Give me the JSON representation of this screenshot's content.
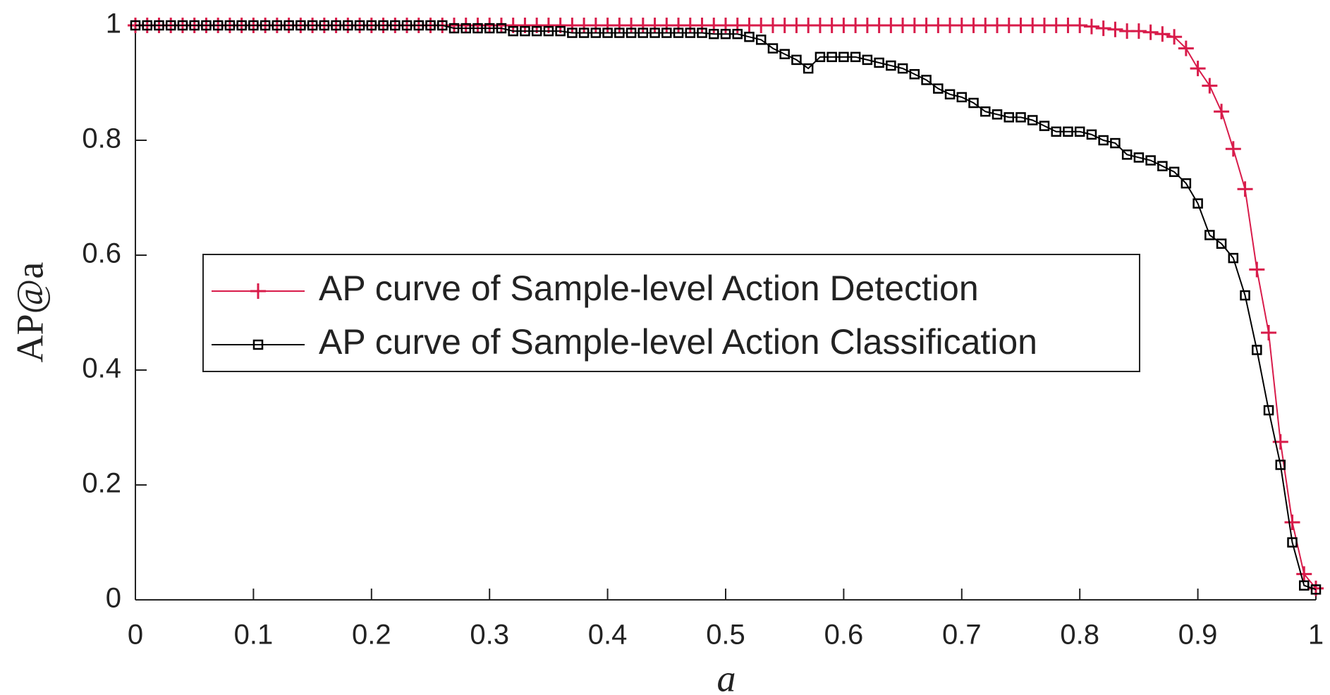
{
  "chart_data": {
    "type": "line",
    "xlabel": "a",
    "ylabel": "AP@a",
    "x": [
      0,
      0.01,
      0.02,
      0.03,
      0.04,
      0.05,
      0.06,
      0.07,
      0.08,
      0.09,
      0.1,
      0.11,
      0.12,
      0.13,
      0.14,
      0.15,
      0.16,
      0.17,
      0.18,
      0.19,
      0.2,
      0.21,
      0.22,
      0.23,
      0.24,
      0.25,
      0.26,
      0.27,
      0.28,
      0.29,
      0.3,
      0.31,
      0.32,
      0.33,
      0.34,
      0.35,
      0.36,
      0.37,
      0.38,
      0.39,
      0.4,
      0.41,
      0.42,
      0.43,
      0.44,
      0.45,
      0.46,
      0.47,
      0.48,
      0.49,
      0.5,
      0.51,
      0.52,
      0.53,
      0.54,
      0.55,
      0.56,
      0.57,
      0.58,
      0.59,
      0.6,
      0.61,
      0.62,
      0.63,
      0.64,
      0.65,
      0.66,
      0.67,
      0.68,
      0.69,
      0.7,
      0.71,
      0.72,
      0.73,
      0.74,
      0.75,
      0.76,
      0.77,
      0.78,
      0.79,
      0.8,
      0.81,
      0.82,
      0.83,
      0.84,
      0.85,
      0.86,
      0.87,
      0.88,
      0.89,
      0.9,
      0.91,
      0.92,
      0.93,
      0.94,
      0.95,
      0.96,
      0.97,
      0.98,
      0.99,
      1
    ],
    "series": [
      {
        "name": "AP curve of Sample-level Action Detection",
        "color": "#d81b4a",
        "marker": "plus",
        "values": [
          1,
          1,
          1,
          1,
          1,
          1,
          1,
          1,
          1,
          1,
          1,
          1,
          1,
          1,
          1,
          1,
          1,
          1,
          1,
          1,
          1,
          1,
          1,
          1,
          1,
          1,
          1,
          1,
          1,
          1,
          1,
          1,
          1,
          1,
          1,
          1,
          1,
          1,
          1,
          1,
          1,
          1,
          1,
          1,
          1,
          1,
          1,
          1,
          1,
          1,
          1,
          1,
          1,
          1,
          1,
          1,
          1,
          1,
          1,
          1,
          1,
          1,
          1,
          1,
          1,
          1,
          1,
          1,
          1,
          1,
          1,
          1,
          1,
          1,
          1,
          1,
          1,
          1,
          1,
          1,
          1,
          0.998,
          0.995,
          0.993,
          0.99,
          0.99,
          0.988,
          0.985,
          0.98,
          0.96,
          0.925,
          0.895,
          0.85,
          0.785,
          0.715,
          0.575,
          0.465,
          0.275,
          0.135,
          0.045,
          0.02
        ]
      },
      {
        "name": "AP curve of Sample-level Action Classification",
        "color": "#000000",
        "marker": "square",
        "values": [
          1,
          1,
          1,
          1,
          1,
          1,
          1,
          1,
          1,
          1,
          1,
          1,
          1,
          1,
          1,
          1,
          1,
          1,
          1,
          1,
          1,
          1,
          1,
          1,
          1,
          1,
          1,
          0.995,
          0.995,
          0.995,
          0.995,
          0.995,
          0.99,
          0.99,
          0.99,
          0.99,
          0.99,
          0.987,
          0.987,
          0.987,
          0.987,
          0.987,
          0.987,
          0.987,
          0.987,
          0.987,
          0.987,
          0.987,
          0.987,
          0.985,
          0.985,
          0.985,
          0.98,
          0.975,
          0.96,
          0.95,
          0.94,
          0.925,
          0.945,
          0.945,
          0.945,
          0.945,
          0.94,
          0.935,
          0.93,
          0.925,
          0.915,
          0.905,
          0.89,
          0.88,
          0.875,
          0.865,
          0.85,
          0.845,
          0.84,
          0.84,
          0.835,
          0.825,
          0.815,
          0.815,
          0.815,
          0.81,
          0.8,
          0.795,
          0.775,
          0.77,
          0.765,
          0.755,
          0.745,
          0.725,
          0.69,
          0.635,
          0.62,
          0.595,
          0.53,
          0.435,
          0.33,
          0.235,
          0.1,
          0.025,
          0.018
        ]
      }
    ],
    "xlim": [
      0,
      1
    ],
    "ylim": [
      0,
      1
    ],
    "xticks": [
      0,
      0.1,
      0.2,
      0.3,
      0.4,
      0.5,
      0.6,
      0.7,
      0.8,
      0.9,
      1
    ],
    "yticks": [
      0,
      0.2,
      0.4,
      0.6,
      0.8,
      1
    ]
  }
}
